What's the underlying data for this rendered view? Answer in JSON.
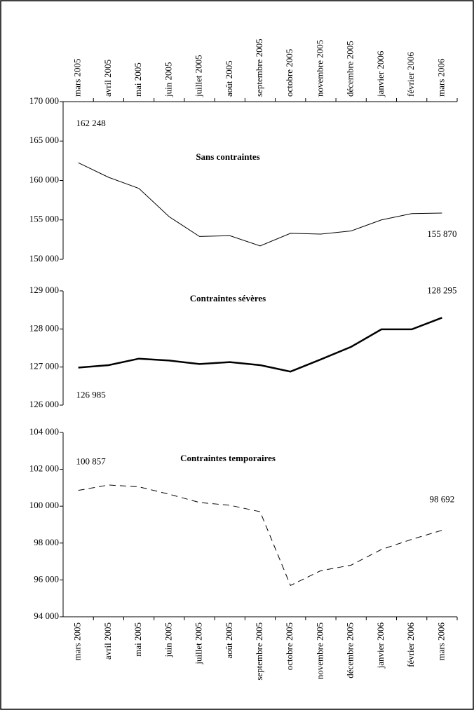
{
  "chart_data": [
    {
      "type": "line",
      "title": "Sans contraintes",
      "categories": [
        "mars 2005",
        "avril 2005",
        "mai 2005",
        "juin 2005",
        "juillet 2005",
        "août 2005",
        "septembre 2005",
        "octobre 2005",
        "novembre 2005",
        "décembre 2005",
        "janvier 2006",
        "février 2006",
        "mars 2006"
      ],
      "values": [
        162248,
        160400,
        159000,
        155400,
        152900,
        153000,
        151700,
        153300,
        153200,
        153600,
        155000,
        155800,
        155870
      ],
      "value_labels": [
        "162 248",
        null,
        null,
        null,
        null,
        null,
        null,
        null,
        null,
        null,
        null,
        null,
        "155 870"
      ],
      "ylim": [
        150000,
        170000
      ],
      "yticks": [
        {
          "value": 150000,
          "label": "150 000"
        },
        {
          "value": 155000,
          "label": "155 000"
        },
        {
          "value": 160000,
          "label": "160 000"
        },
        {
          "value": 165000,
          "label": "165 000"
        },
        {
          "value": 170000,
          "label": "170 000"
        }
      ],
      "color": "#000000",
      "line_width": 1,
      "dashed": false
    },
    {
      "type": "line",
      "title": "Contraintes sévères",
      "values": [
        126985,
        127050,
        127220,
        127170,
        127080,
        127130,
        127050,
        126880,
        127200,
        127530,
        127990,
        127990,
        128295
      ],
      "value_labels": [
        "126 985",
        null,
        null,
        null,
        null,
        null,
        null,
        null,
        null,
        null,
        null,
        null,
        "128 295"
      ],
      "ylim": [
        126000,
        129000
      ],
      "yticks": [
        {
          "value": 126000,
          "label": "126 000"
        },
        {
          "value": 127000,
          "label": "127 000"
        },
        {
          "value": 128000,
          "label": "128 000"
        },
        {
          "value": 129000,
          "label": "129 000"
        }
      ],
      "color": "#000000",
      "line_width": 2.5,
      "dashed": false
    },
    {
      "type": "line",
      "title": "Contraintes temporaires",
      "categories": [
        "mars 2005",
        "avril 2005",
        "mai 2005",
        "juin 2005",
        "juillet 2005",
        "août 2005",
        "septembre 2005",
        "octobre 2005",
        "novembre 2005",
        "décembre 2005",
        "janvier 2006",
        "février 2006",
        "mars 2006"
      ],
      "values": [
        100857,
        101150,
        101050,
        100650,
        100200,
        100050,
        99700,
        95700,
        96500,
        96800,
        97650,
        98200,
        98692
      ],
      "value_labels": [
        "100 857",
        null,
        null,
        null,
        null,
        null,
        null,
        null,
        null,
        null,
        null,
        null,
        "98 692"
      ],
      "ylim": [
        94000,
        104000
      ],
      "yticks": [
        {
          "value": 94000,
          "label": "94 000"
        },
        {
          "value": 96000,
          "label": "96 000"
        },
        {
          "value": 98000,
          "label": "98 000"
        },
        {
          "value": 100000,
          "label": "100 000"
        },
        {
          "value": 102000,
          "label": "102 000"
        },
        {
          "value": 104000,
          "label": "104 000"
        }
      ],
      "color": "#000000",
      "line_width": 1,
      "dashed": true
    }
  ]
}
